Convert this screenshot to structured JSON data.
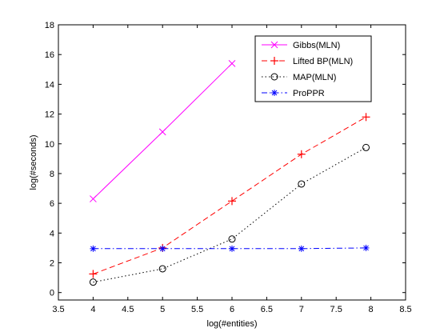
{
  "chart_data": {
    "type": "line",
    "title": "",
    "xlabel": "log(#entities)",
    "ylabel": "log(#seconds)",
    "xlim": [
      3.5,
      8.5
    ],
    "ylim": [
      -0.5,
      18
    ],
    "xticks": [
      3.5,
      4,
      4.5,
      5,
      5.5,
      6,
      6.5,
      7,
      7.5,
      8,
      8.5
    ],
    "xtick_labels": [
      "3.5",
      "4",
      "4.5",
      "5",
      "5.5",
      "6",
      "6.5",
      "7",
      "7.5",
      "8",
      "8.5"
    ],
    "yticks": [
      0,
      2,
      4,
      6,
      8,
      10,
      12,
      14,
      16,
      18
    ],
    "ytick_labels": [
      "0",
      "2",
      "4",
      "6",
      "8",
      "10",
      "12",
      "14",
      "16",
      "18"
    ],
    "grid": false,
    "legend_position": "top-right",
    "series": [
      {
        "name": "Gibbs(MLN)",
        "color": "#ff00ff",
        "line_style": "solid",
        "marker": "x",
        "x": [
          4,
          5,
          6
        ],
        "y": [
          6.3,
          10.8,
          15.4
        ]
      },
      {
        "name": "Lifted BP(MLN)",
        "color": "#ff0000",
        "line_style": "dashed",
        "marker": "+",
        "x": [
          4,
          5,
          6,
          7,
          7.93
        ],
        "y": [
          1.25,
          3.0,
          6.15,
          9.3,
          11.8
        ]
      },
      {
        "name": "MAP(MLN)",
        "color": "#000000",
        "line_style": "dotted",
        "marker": "o",
        "x": [
          4,
          5,
          6,
          7,
          7.93
        ],
        "y": [
          0.7,
          1.6,
          3.6,
          7.3,
          9.75
        ]
      },
      {
        "name": "ProPPR",
        "color": "#0000ff",
        "line_style": "dashdot",
        "marker": "*",
        "x": [
          4,
          5,
          6,
          7,
          7.93
        ],
        "y": [
          2.95,
          2.95,
          2.95,
          2.95,
          3.0
        ]
      }
    ]
  }
}
